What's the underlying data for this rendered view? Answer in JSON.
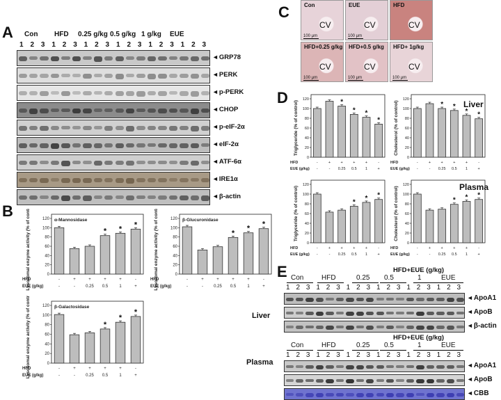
{
  "panels": {
    "A": "A",
    "B": "B",
    "C": "C",
    "D": "D",
    "E": "E"
  },
  "panelA": {
    "groups": [
      "Con",
      "HFD",
      "0.25 g/kg",
      "0.5 g/kg",
      "1 g/kg",
      "EUE"
    ],
    "lanes": [
      "1",
      "2",
      "3",
      "1",
      "2",
      "3",
      "1",
      "2",
      "3",
      "1",
      "2",
      "3",
      "1",
      "2",
      "3",
      "1",
      "2",
      "3"
    ],
    "rows": [
      {
        "label": "GRP78",
        "tone": "#3a3a3a",
        "bg": "#c9c9c9"
      },
      {
        "label": "PERK",
        "tone": "#7a7a7a",
        "bg": "#dedede"
      },
      {
        "label": "p-PERK",
        "tone": "#8a8a8a",
        "bg": "#e6e6e6"
      },
      {
        "label": "CHOP",
        "tone": "#2e2e2e",
        "bg": "#8c8c8c"
      },
      {
        "label": "p-eIF-2α",
        "tone": "#555555",
        "bg": "#d0d0d0"
      },
      {
        "label": "eIF-2α",
        "tone": "#3c3c3c",
        "bg": "#bdbdbd"
      },
      {
        "label": "ATF-6α",
        "tone": "#4a4a4a",
        "bg": "#cfcfcf"
      },
      {
        "label": "IRE1α",
        "tone": "#6b5a44",
        "bg": "#a89a86"
      },
      {
        "label": "β-actin",
        "tone": "#444444",
        "bg": "#bfbfbf"
      }
    ]
  },
  "chart_data": [
    {
      "type": "bar",
      "title": "α-Mannosidase",
      "ylabel": "Lysosomal enzyme activity (% of control)",
      "ylim": [
        0,
        120
      ],
      "yticks": [
        "0",
        "20",
        "40",
        "60",
        "80",
        "100",
        "120"
      ],
      "values": [
        100,
        55,
        60,
        83,
        88,
        97
      ],
      "sig": [
        "",
        "",
        "",
        "*",
        "*",
        "*"
      ],
      "rows": [
        {
          "label": "HFD",
          "cells": [
            "-",
            "+",
            "+",
            "+",
            "+",
            "-"
          ]
        },
        {
          "label": "EUE (g/kg)",
          "cells": [
            "-",
            "-",
            "0.25",
            "0.5",
            "1",
            "+"
          ]
        }
      ]
    },
    {
      "type": "bar",
      "title": "β-Glucuronidase",
      "ylabel": "Lysosomal enzyme activity (% of control)",
      "ylim": [
        0,
        120
      ],
      "yticks": [
        "0",
        "20",
        "40",
        "60",
        "80",
        "100",
        "120"
      ],
      "values": [
        102,
        52,
        59,
        79,
        89,
        98
      ],
      "sig": [
        "",
        "",
        "",
        "*",
        "*",
        "*"
      ],
      "rows": [
        {
          "label": "HFD",
          "cells": [
            "-",
            "+",
            "+",
            "+",
            "+",
            "-"
          ]
        },
        {
          "label": "EUE (g/kg)",
          "cells": [
            "-",
            "-",
            "0.25",
            "0.5",
            "1",
            "+"
          ]
        }
      ]
    },
    {
      "type": "bar",
      "title": "β-Galactosidase",
      "ylabel": "Lysosomal enzyme activity (% of control)",
      "ylim": [
        0,
        120
      ],
      "yticks": [
        "0",
        "20",
        "40",
        "60",
        "80",
        "100",
        "120"
      ],
      "values": [
        101,
        59,
        63,
        71,
        85,
        97
      ],
      "sig": [
        "",
        "",
        "",
        "*",
        "*",
        "*"
      ],
      "rows": [
        {
          "label": "HFD",
          "cells": [
            "-",
            "+",
            "+",
            "+",
            "+",
            "-"
          ]
        },
        {
          "label": "EUE (g/kg)",
          "cells": [
            "-",
            "-",
            "0.25",
            "0.5",
            "1",
            "+"
          ]
        }
      ]
    },
    {
      "type": "bar",
      "title": "Liver",
      "ylabel": "Triglyceride (% of control)",
      "ylim": [
        0,
        120
      ],
      "yticks": [
        "0",
        "20",
        "40",
        "60",
        "80",
        "100",
        "120"
      ],
      "values": [
        100,
        115,
        105,
        88,
        82,
        68
      ],
      "sig": [
        "",
        "",
        "*",
        "*",
        "*",
        "*"
      ],
      "rows": [
        {
          "label": "HFD",
          "cells": [
            "-",
            "+",
            "+",
            "+",
            "+",
            "-"
          ]
        },
        {
          "label": "EUE (g/kg)",
          "cells": [
            "-",
            "-",
            "0.25",
            "0.5",
            "1",
            "+"
          ]
        }
      ]
    },
    {
      "type": "bar",
      "title": "",
      "ylabel": "Cholesterol (% of control)",
      "ylim": [
        0,
        120
      ],
      "yticks": [
        "0",
        "20",
        "40",
        "60",
        "80",
        "100",
        "120"
      ],
      "values": [
        100,
        110,
        100,
        96,
        86,
        79
      ],
      "sig": [
        "",
        "",
        "*",
        "*",
        "*",
        "*"
      ],
      "rows": [
        {
          "label": "HFD",
          "cells": [
            "-",
            "+",
            "+",
            "+",
            "+",
            "-"
          ]
        },
        {
          "label": "EUE (g/kg)",
          "cells": [
            "-",
            "-",
            "0.25",
            "0.5",
            "1",
            "+"
          ]
        }
      ]
    },
    {
      "type": "bar",
      "title": "Plasma",
      "ylabel": "Triglyceride (% of control)",
      "ylim": [
        0,
        120
      ],
      "yticks": [
        "0",
        "20",
        "40",
        "60",
        "80",
        "100",
        "120"
      ],
      "values": [
        100,
        63,
        67,
        75,
        83,
        89
      ],
      "sig": [
        "",
        "",
        "",
        "*",
        "*",
        "*"
      ],
      "rows": [
        {
          "label": "HFD",
          "cells": [
            "-",
            "+",
            "+",
            "+",
            "+",
            "-"
          ]
        },
        {
          "label": "EUE (g/kg)",
          "cells": [
            "-",
            "-",
            "0.25",
            "0.5",
            "1",
            "+"
          ]
        }
      ]
    },
    {
      "type": "bar",
      "title": "",
      "ylabel": "Cholesterol (% of control)",
      "ylim": [
        0,
        120
      ],
      "yticks": [
        "0",
        "20",
        "40",
        "60",
        "80",
        "100",
        "120"
      ],
      "values": [
        100,
        67,
        69,
        79,
        85,
        89
      ],
      "sig": [
        "",
        "",
        "",
        "*",
        "*",
        "*"
      ],
      "rows": [
        {
          "label": "HFD",
          "cells": [
            "-",
            "+",
            "+",
            "+",
            "+",
            "-"
          ]
        },
        {
          "label": "EUE (g/kg)",
          "cells": [
            "-",
            "-",
            "0.25",
            "0.5",
            "1",
            "+"
          ]
        }
      ]
    }
  ],
  "panelC": {
    "tiles": [
      {
        "title": "Con",
        "cv": "CV",
        "scale": "100 μm",
        "color": "#e7d3d9"
      },
      {
        "title": "EUE",
        "cv": "CV",
        "scale": "100 μm",
        "color": "#e3cfd6"
      },
      {
        "title": "HFD",
        "cv": "CV",
        "scale": "",
        "color": "#c9837f"
      },
      {
        "title": "HFD+0.25 g/kg",
        "cv": "CV",
        "scale": "100 μm",
        "color": "#dcb5b6"
      },
      {
        "title": "HFD+0.5 g/kg",
        "cv": "CV",
        "scale": "100 μm",
        "color": "#e2c2c6"
      },
      {
        "title": "HFD+ 1g/kg",
        "cv": "CV",
        "scale": "100 μm",
        "color": "#e8d4d8"
      }
    ]
  },
  "panelE": {
    "treatment_header": "HFD+EUE  (g/kg)",
    "groups": [
      "Con",
      "HFD",
      "0.25",
      "0.5",
      "1",
      "EUE"
    ],
    "lanes": [
      "1",
      "2",
      "3",
      "1",
      "2",
      "3",
      "1",
      "2",
      "3",
      "1",
      "2",
      "3",
      "1",
      "2",
      "3",
      "1",
      "2",
      "3"
    ],
    "liver": {
      "label": "Liver",
      "rows": [
        {
          "label": "ApoA1",
          "tone": "#333333",
          "bg": "#bdbdbd"
        },
        {
          "label": "ApoB",
          "tone": "#2a2a2a",
          "bg": "#cfcfcf"
        },
        {
          "label": "β-actin",
          "tone": "#3a3a3a",
          "bg": "#c2c2c2"
        }
      ]
    },
    "plasma": {
      "label": "Plasma",
      "rows": [
        {
          "label": "ApoA1",
          "tone": "#303030",
          "bg": "#c8c8c8"
        },
        {
          "label": "ApoB",
          "tone": "#2b2b2b",
          "bg": "#d5d5d5"
        },
        {
          "label": "CBB",
          "tone": "#3a3ab0",
          "bg": "#6f73cf"
        }
      ]
    }
  }
}
